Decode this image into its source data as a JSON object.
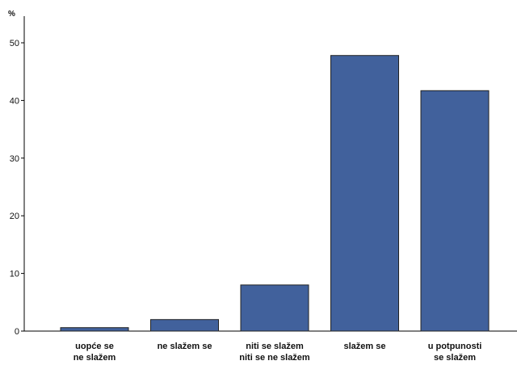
{
  "chart_data": {
    "type": "bar",
    "title": "",
    "xlabel": "",
    "ylabel": "%",
    "categories": [
      [
        "uopće se",
        "ne slažem"
      ],
      [
        "ne slažem se"
      ],
      [
        "niti se slažem",
        "niti se ne slažem"
      ],
      [
        "slažem se"
      ],
      [
        "u potpunosti",
        "se slažem"
      ]
    ],
    "values": [
      0.6,
      2.0,
      8.0,
      47.8,
      41.7
    ],
    "ylim": [
      0,
      53
    ],
    "yticks": [
      0,
      10,
      20,
      30,
      40,
      50
    ],
    "grid": false,
    "legend": "none",
    "colors": {
      "bar_fill": "#41619c",
      "bar_stroke": "#222222",
      "axis": "#000000",
      "text": "#111111"
    }
  }
}
